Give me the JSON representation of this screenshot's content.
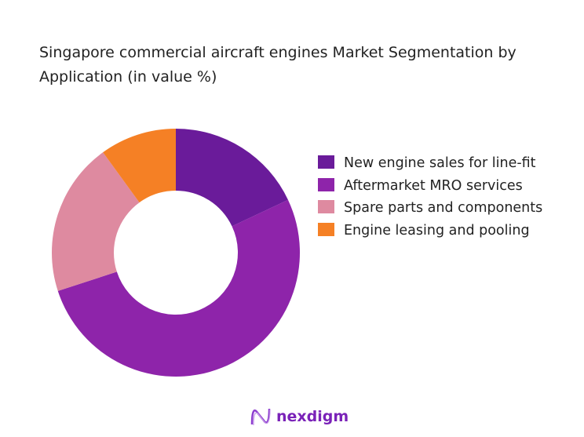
{
  "chart_data": {
    "type": "donut",
    "title": "Singapore commercial aircraft engines Market Segmentation by Application (in value %)",
    "categories": [
      "New engine sales for line-fit",
      "Aftermarket MRO services",
      "Spare parts and components",
      "Engine leasing and pooling"
    ],
    "values": [
      18,
      52,
      20,
      10
    ],
    "colors": [
      "#6a1b9a",
      "#8e24aa",
      "#de8aa0",
      "#f58025"
    ],
    "legend_position": "right",
    "start_angle": "top, clockwise"
  },
  "brand": {
    "logo_text": "nexdigm",
    "logo_color": "#7a22b8"
  }
}
